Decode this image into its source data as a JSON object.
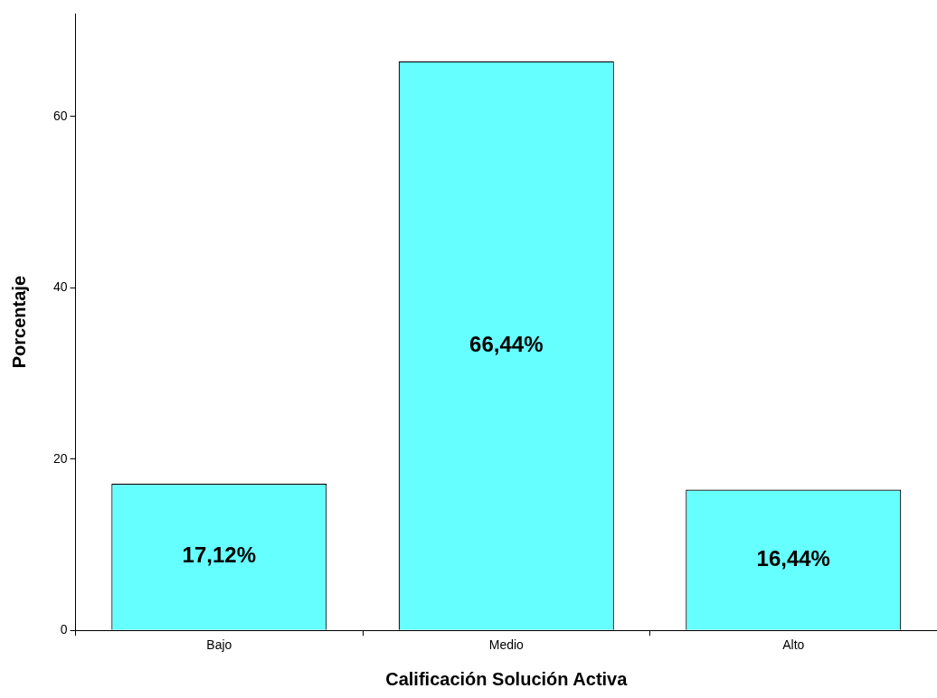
{
  "chart_data": {
    "type": "bar",
    "xlabel": "Calificación Solución Activa",
    "ylabel": "Porcentaje",
    "categories": [
      "Bajo",
      "Medio",
      "Alto"
    ],
    "values": [
      17.12,
      66.44,
      16.44
    ],
    "value_labels": [
      "17,12%",
      "66,44%",
      "16,44%"
    ],
    "color": "#66ffff",
    "ylim": [
      0,
      72
    ],
    "yticks": [
      0,
      20,
      40,
      60
    ],
    "grid": false,
    "legend": false
  }
}
